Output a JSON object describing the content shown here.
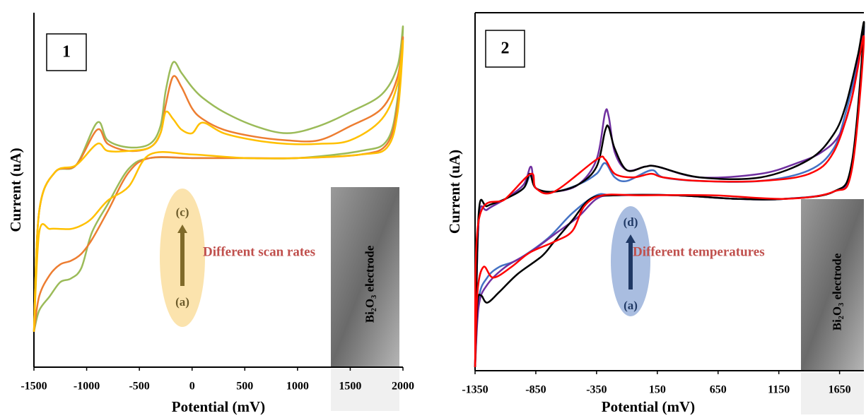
{
  "chart_data": [
    {
      "type": "line",
      "panel_label": "1",
      "xlabel": "Potential (mV)",
      "ylabel": "Current (uA)",
      "xlim": [
        -1500,
        2000
      ],
      "xticks": [
        -1500,
        -1000,
        -500,
        0,
        500,
        1000,
        1500,
        2000
      ],
      "ylim": [
        0,
        100
      ],
      "annotations": {
        "arrow_text": "Different scan rates",
        "arrow_top": "(c)",
        "arrow_bottom": "(a)",
        "image_label": "Bi₂O₃ electrode"
      },
      "series": [
        {
          "color": "#9bbb59",
          "x": [
            -1500,
            -1450,
            -1300,
            -1100,
            -900,
            -800,
            -600,
            -400,
            -300,
            -250,
            -180,
            -100,
            0,
            100,
            300,
            600,
            900,
            1200,
            1500,
            1800,
            1950,
            2000,
            1950,
            1850,
            1600,
            1000,
            500,
            0,
            -400,
            -600,
            -800,
            -950,
            -1050,
            -1150,
            -1250,
            -1350,
            -1450,
            -1500
          ],
          "values": [
            10,
            44,
            55,
            57,
            69,
            64,
            62,
            63,
            68,
            78,
            86,
            83,
            79,
            76,
            72,
            68,
            66,
            68,
            72,
            77,
            85,
            96,
            76,
            64,
            61,
            59,
            59,
            59,
            59,
            56,
            46,
            38,
            28,
            25,
            24,
            20,
            16,
            10
          ]
        },
        {
          "color": "#ed7d31",
          "x": [
            -1500,
            -1450,
            -1300,
            -1100,
            -900,
            -800,
            -600,
            -400,
            -300,
            -250,
            -180,
            -100,
            0,
            100,
            300,
            600,
            900,
            1200,
            1500,
            1800,
            1950,
            2000,
            1950,
            1850,
            1600,
            1000,
            500,
            0,
            -400,
            -600,
            -800,
            -950,
            -1050,
            -1150,
            -1250,
            -1350,
            -1450,
            -1500
          ],
          "values": [
            10,
            44,
            55,
            57,
            67,
            63,
            61,
            62,
            66,
            74,
            82,
            79,
            73,
            70,
            67,
            65,
            64,
            64,
            68,
            73,
            82,
            93,
            74,
            63,
            60,
            59,
            59,
            59,
            59,
            55,
            44,
            36,
            32,
            30,
            29,
            26,
            20,
            10
          ]
        },
        {
          "color": "#ffc000",
          "x": [
            -1500,
            -1450,
            -1300,
            -1100,
            -900,
            -800,
            -600,
            -400,
            -300,
            -250,
            -180,
            -100,
            0,
            100,
            300,
            600,
            900,
            1200,
            1500,
            1800,
            1950,
            2000,
            1950,
            1850,
            1600,
            1000,
            500,
            0,
            -400,
            -600,
            -800,
            -950,
            -1050,
            -1150,
            -1250,
            -1350,
            -1450,
            -1500
          ],
          "values": [
            10,
            44,
            55,
            57,
            63,
            61,
            61,
            62,
            66,
            72,
            70,
            67,
            66,
            69,
            66,
            64,
            63,
            63,
            64,
            70,
            80,
            92,
            72,
            62,
            60,
            59,
            59,
            60,
            60,
            51,
            47,
            42,
            40,
            39,
            39,
            39,
            38,
            10
          ]
        }
      ]
    },
    {
      "type": "line",
      "panel_label": "2",
      "xlabel": "Potential (mV)",
      "ylabel": "Current (uA)",
      "xlim": [
        -1350,
        1850
      ],
      "xticks": [
        -1350,
        -850,
        -350,
        150,
        650,
        1150,
        1650
      ],
      "ylim": [
        0,
        100
      ],
      "annotations": {
        "arrow_text": "Different temperatures",
        "arrow_top": "(d)",
        "arrow_bottom": "(a)",
        "image_label": "Bi₂O₃ electrode"
      },
      "series": [
        {
          "color": "#4472c4",
          "x": [
            -1350,
            -1320,
            -1250,
            -1100,
            -950,
            -890,
            -850,
            -700,
            -500,
            -350,
            -280,
            -200,
            -100,
            100,
            200,
            500,
            1000,
            1400,
            1600,
            1700,
            1800,
            1850,
            1750,
            1600,
            1200,
            800,
            300,
            -200,
            -350,
            -550,
            -750,
            -1000,
            -1150,
            -1250,
            -1320,
            -1350
          ],
          "values": [
            1,
            42,
            45,
            48,
            51,
            55,
            51,
            50,
            52,
            55,
            58,
            54,
            53,
            56,
            54,
            53,
            53,
            56,
            62,
            72,
            86,
            95,
            57,
            50,
            48,
            48,
            49,
            49,
            49,
            44,
            37,
            31,
            29,
            26,
            20,
            1
          ]
        },
        {
          "color": "#7030a0",
          "x": [
            -1350,
            -1320,
            -1250,
            -1100,
            -950,
            -890,
            -850,
            -700,
            -500,
            -350,
            -280,
            -250,
            -200,
            -100,
            50,
            150,
            500,
            1000,
            1300,
            1500,
            1650,
            1750,
            1850,
            1750,
            1600,
            1200,
            800,
            300,
            -200,
            -350,
            -500,
            -700,
            -900,
            -1100,
            -1250,
            -1320,
            -1350
          ],
          "values": [
            1,
            42,
            45,
            48,
            52,
            57,
            51,
            50,
            52,
            59,
            72,
            71,
            61,
            56,
            57,
            57,
            54,
            55,
            58,
            61,
            66,
            76,
            95,
            57,
            50,
            48,
            48,
            49,
            49,
            48,
            43,
            38,
            33,
            29,
            24,
            18,
            1
          ]
        },
        {
          "color": "#000000",
          "x": [
            -1350,
            -1320,
            -1250,
            -1100,
            -950,
            -900,
            -850,
            -700,
            -500,
            -350,
            -280,
            -250,
            -200,
            -100,
            50,
            150,
            500,
            1000,
            1400,
            1600,
            1700,
            1800,
            1850,
            1750,
            1600,
            1200,
            800,
            300,
            -200,
            -400,
            -550,
            -700,
            -800,
            -1000,
            -1150,
            -1250,
            -1300,
            -1330,
            -1350
          ],
          "values": [
            1,
            44,
            46,
            48,
            51,
            55,
            51,
            50,
            52,
            57,
            67,
            68,
            62,
            56,
            57,
            57,
            54,
            54,
            59,
            66,
            74,
            88,
            96,
            58,
            50,
            48,
            48,
            49,
            49,
            48,
            42,
            36,
            32,
            27,
            22,
            19,
            21,
            19,
            1
          ]
        },
        {
          "color": "#ff0000",
          "x": [
            -1350,
            -1320,
            -1100,
            -890,
            -850,
            -700,
            -350,
            -280,
            -200,
            -50,
            100,
            200,
            500,
            1000,
            1400,
            1600,
            1750,
            1850,
            1750,
            1600,
            1200,
            600,
            0,
            -300,
            -450,
            -550,
            -700,
            -900,
            -1050,
            -1200,
            -1280,
            -1330,
            -1350
          ],
          "values": [
            1,
            42,
            48,
            55,
            51,
            50,
            59,
            59,
            55,
            54,
            55,
            54,
            53,
            53,
            55,
            61,
            76,
            93,
            56,
            50,
            48,
            49,
            49,
            49,
            46,
            39,
            36,
            33,
            29,
            26,
            29,
            22,
            1
          ]
        }
      ]
    }
  ]
}
